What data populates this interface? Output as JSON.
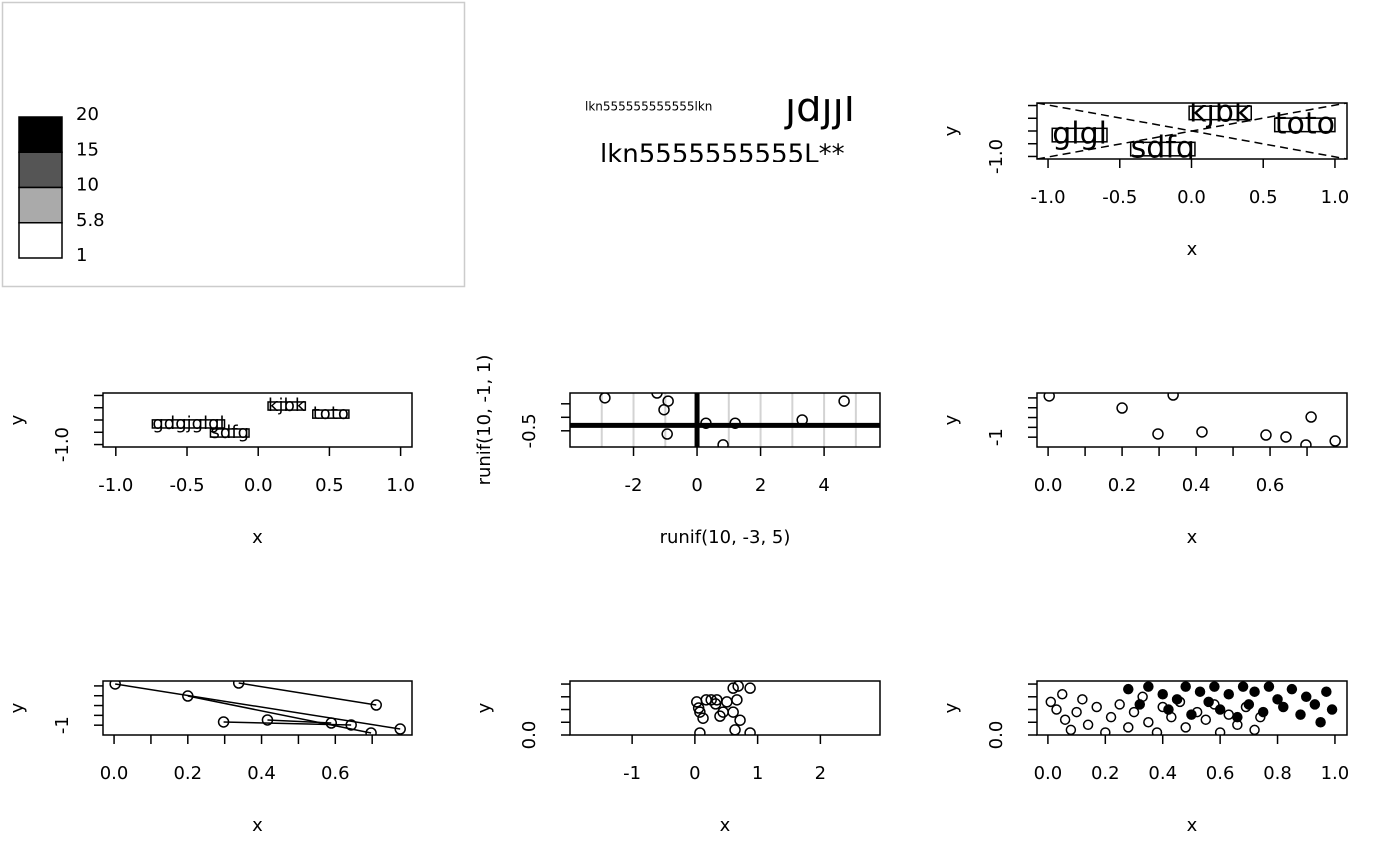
{
  "chart_data": [
    {
      "type": "legend",
      "breaks": [
        20,
        15,
        10,
        5.8,
        1
      ],
      "colors": [
        "#000000",
        "#555555",
        "#aaaaaa",
        "#ffffff"
      ]
    },
    {
      "type": "text",
      "texts": [
        "lkn555555555555lkn",
        "jdjjl",
        "lkn5555555555L**"
      ]
    },
    {
      "type": "scatter",
      "xlabel": "x",
      "ylabel": "y",
      "xlim": [
        -1.077,
        1.084
      ],
      "ylim": [
        -1.1,
        1.1
      ],
      "xticks": [
        {
          "value": -1,
          "label": "-1.0"
        },
        -0.5,
        {
          "value": 0,
          "label": "0.0"
        },
        0.5,
        {
          "value": 1,
          "label": "1.0"
        }
      ],
      "yticks": [
        {
          "value": -1,
          "label": "-1.0"
        }
      ],
      "yticks_minor": [
        -0.5,
        0,
        0.5,
        1
      ],
      "point_labels": [
        "kjbk",
        "toto",
        "glgl",
        "sdfg"
      ],
      "x": [
        0.2,
        0.79,
        -0.78,
        -0.2
      ],
      "y": [
        0.71,
        0.24,
        -0.16,
        -0.71
      ],
      "diagonals": true
    },
    {
      "type": "scatter",
      "xlabel": "x",
      "ylabel": "y",
      "xlim": [
        -1.09,
        1.08
      ],
      "ylim": [
        -1.1,
        1.1
      ],
      "xticks": [
        {
          "value": -1,
          "label": "-1.0"
        },
        -0.5,
        {
          "value": 0,
          "label": "0.0"
        },
        0.5,
        {
          "value": 1,
          "label": "1.0"
        }
      ],
      "yticks": [
        {
          "value": -1,
          "label": "-1.0"
        }
      ],
      "yticks_minor": [
        -0.5,
        0,
        0.5,
        1
      ],
      "point_labels": [
        "kjbk",
        "toto",
        "gdgjglgl",
        "sdfg"
      ],
      "x": [
        0.2,
        0.51,
        -0.49,
        -0.2
      ],
      "y": [
        0.57,
        0.24,
        -0.16,
        -0.53
      ]
    },
    {
      "type": "scatter",
      "xlabel": "runif(10, -3, 5)",
      "ylabel": "runif(10, -1, 1)",
      "xlim": [
        -4.0,
        5.76
      ],
      "ylim": [
        -0.8,
        0.2
      ],
      "xticks": [
        -2,
        0,
        2,
        4
      ],
      "yticks": [
        -0.5
      ],
      "yticks_minor": [
        -0.25,
        0
      ],
      "xgrid": [
        -3,
        -2,
        -1,
        1,
        2,
        3,
        4,
        5
      ],
      "ref_lines": {
        "x": 0,
        "y": -0.4
      },
      "x": [
        -2.9,
        -1.26,
        -0.91,
        -1.04,
        -0.94,
        0.28,
        1.2,
        0.82,
        3.31,
        4.63
      ],
      "y": [
        0.11,
        0.2,
        0.05,
        -0.11,
        -0.56,
        -0.36,
        -0.36,
        -0.76,
        -0.3,
        0.05
      ]
    },
    {
      "type": "scatter",
      "xlabel": "x",
      "ylabel": "y",
      "xlim": [
        -0.03,
        0.808
      ],
      "ylim": [
        -1.2,
        -0.1
      ],
      "xticks": [
        {
          "value": 0,
          "label": "0.0"
        },
        0.2,
        0.4,
        0.6
      ],
      "xticks_minor": [
        0.1,
        0.3,
        0.5,
        0.7
      ],
      "yticks": [
        -1
      ],
      "yticks_minor": [
        -0.8,
        -0.6,
        -0.4,
        -0.2
      ],
      "x": [
        0.003,
        0.2,
        0.338,
        0.297,
        0.416,
        0.589,
        0.643,
        0.711,
        0.697,
        0.776
      ],
      "y": [
        -0.161,
        -0.406,
        -0.141,
        -0.935,
        -0.894,
        -0.956,
        -0.996,
        -0.589,
        -1.159,
        -1.078
      ]
    },
    {
      "type": "scatter",
      "xlabel": "x",
      "ylabel": "y",
      "xlim": [
        -0.03,
        0.808
      ],
      "ylim": [
        -1.2,
        -0.1
      ],
      "xticks": [
        {
          "value": 0,
          "label": "0.0"
        },
        0.2,
        0.4,
        0.6
      ],
      "xticks_minor": [
        0.1,
        0.3,
        0.5,
        0.7
      ],
      "yticks": [
        -1
      ],
      "yticks_minor": [
        -0.8,
        -0.6,
        -0.4,
        -0.2
      ],
      "segments": true,
      "x": [
        0.003,
        0.2,
        0.338,
        0.297,
        0.416,
        0.589,
        0.643,
        0.711,
        0.697,
        0.776
      ],
      "y": [
        -0.161,
        -0.406,
        -0.141,
        -0.935,
        -0.894,
        -0.956,
        -0.996,
        -0.589,
        -1.159,
        -1.078
      ]
    },
    {
      "type": "scatter",
      "xlabel": "x",
      "ylabel": "y",
      "xlim": [
        -1.99,
        2.95
      ],
      "ylim": [
        0,
        1.06
      ],
      "xticks": [
        -1,
        0,
        1,
        2
      ],
      "yticks": [
        {
          "value": 0,
          "label": "0.0"
        }
      ],
      "yticks_minor": [
        0.25,
        0.5,
        0.75,
        1
      ],
      "x": [
        0.03,
        0.08,
        0.13,
        0.18,
        0.26,
        0.33,
        0.4,
        0.45,
        0.35,
        0.08,
        0.61,
        0.69,
        0.88,
        0.67,
        0.61,
        0.64,
        0.88,
        0.72,
        0.51,
        0.06
      ],
      "y": [
        0.65,
        0.45,
        0.33,
        0.69,
        0.69,
        0.61,
        0.37,
        0.45,
        0.69,
        0.04,
        0.92,
        0.96,
        0.92,
        0.69,
        0.45,
        0.1,
        0.04,
        0.29,
        0.65,
        0.53
      ]
    },
    {
      "type": "scatter",
      "xlabel": "x",
      "ylabel": "y",
      "xlim": [
        -0.038,
        1.042
      ],
      "ylim": [
        0,
        1.06
      ],
      "xticks": [
        {
          "value": 0,
          "label": "0.0"
        },
        0.2,
        0.4,
        0.6,
        0.8,
        {
          "value": 1,
          "label": "1.0"
        }
      ],
      "yticks": [
        {
          "value": 0,
          "label": "0.0"
        }
      ],
      "yticks_minor": [
        0.25,
        0.5,
        0.75,
        1
      ],
      "series": [
        {
          "filled": false,
          "x": [
            0.01,
            0.03,
            0.05,
            0.06,
            0.08,
            0.1,
            0.12,
            0.14,
            0.17,
            0.2,
            0.22,
            0.25,
            0.28,
            0.3,
            0.33,
            0.35,
            0.38,
            0.4,
            0.43,
            0.46,
            0.48,
            0.52,
            0.55,
            0.58,
            0.6,
            0.63,
            0.66,
            0.69,
            0.72,
            0.74
          ],
          "y": [
            0.65,
            0.5,
            0.8,
            0.3,
            0.1,
            0.45,
            0.7,
            0.2,
            0.55,
            0.05,
            0.35,
            0.6,
            0.15,
            0.45,
            0.75,
            0.25,
            0.05,
            0.55,
            0.35,
            0.65,
            0.15,
            0.45,
            0.3,
            0.6,
            0.05,
            0.4,
            0.2,
            0.55,
            0.1,
            0.35
          ]
        },
        {
          "filled": true,
          "x": [
            0.28,
            0.32,
            0.35,
            0.4,
            0.42,
            0.45,
            0.48,
            0.5,
            0.53,
            0.56,
            0.58,
            0.6,
            0.63,
            0.66,
            0.68,
            0.7,
            0.72,
            0.75,
            0.77,
            0.8,
            0.82,
            0.85,
            0.88,
            0.9,
            0.93,
            0.95,
            0.97,
            0.99
          ],
          "y": [
            0.9,
            0.6,
            0.95,
            0.8,
            0.5,
            0.7,
            0.95,
            0.4,
            0.85,
            0.65,
            0.95,
            0.5,
            0.8,
            0.35,
            0.95,
            0.6,
            0.85,
            0.45,
            0.95,
            0.7,
            0.55,
            0.9,
            0.4,
            0.75,
            0.6,
            0.25,
            0.85,
            0.5
          ]
        }
      ]
    }
  ]
}
